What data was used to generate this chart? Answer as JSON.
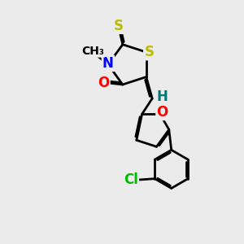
{
  "bg_color": "#ebebeb",
  "atom_colors": {
    "C": "#000000",
    "N": "#0000ff",
    "O": "#ff0000",
    "S": "#bbbb00",
    "Cl": "#00bb00",
    "H": "#007777"
  },
  "bond_color": "#000000",
  "bond_width": 2.0,
  "font_size": 12
}
